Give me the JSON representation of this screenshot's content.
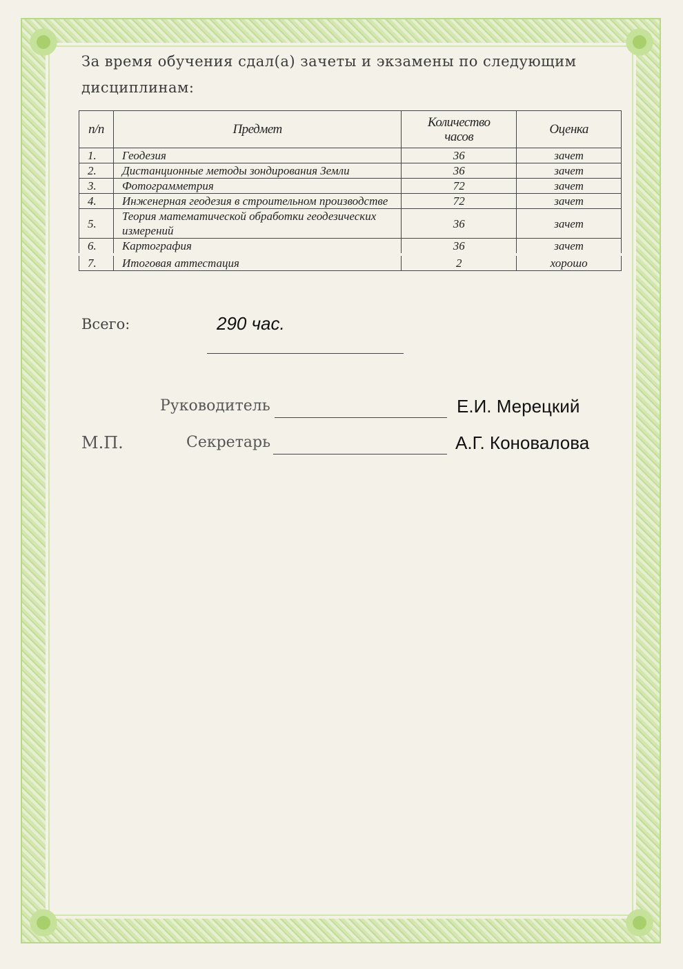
{
  "intro": "За время обучения сдал(а) зачеты и экзамены по следующим дисциплинам:",
  "table": {
    "headers": [
      "п/п",
      "Предмет",
      "Количество часов",
      "Оценка"
    ],
    "rows": [
      {
        "num": "1.",
        "subject": "Геодезия",
        "hours": "36",
        "grade": "зачет"
      },
      {
        "num": "2.",
        "subject": "Дистанционные методы зондирования Земли",
        "hours": "36",
        "grade": "зачет"
      },
      {
        "num": "3.",
        "subject": "Фотограмметрия",
        "hours": "72",
        "grade": "зачет"
      },
      {
        "num": "4.",
        "subject": "Инженерная геодезия в строительном производстве",
        "hours": "72",
        "grade": "зачет"
      },
      {
        "num": "5.",
        "subject": "Теория математической обработки геодезических измерений",
        "hours": "36",
        "grade": "зачет"
      },
      {
        "num": "6.",
        "subject": "Картография",
        "hours": "36",
        "grade": "зачет"
      },
      {
        "num": "7.",
        "subject": "Итоговая аттестация",
        "hours": "2",
        "grade": "хорошо"
      }
    ]
  },
  "total": {
    "label": "Всего:",
    "value": "290 час."
  },
  "signatures": {
    "head_label": "Руководитель",
    "head_name": "Е.И. Мерецкий",
    "stamp_label": "М.П.",
    "secretary_label": "Секретарь",
    "secretary_name": "А.Г. Коновалова"
  },
  "colors": {
    "border_green": "#bcd98c",
    "paper": "#f4f2e8"
  }
}
